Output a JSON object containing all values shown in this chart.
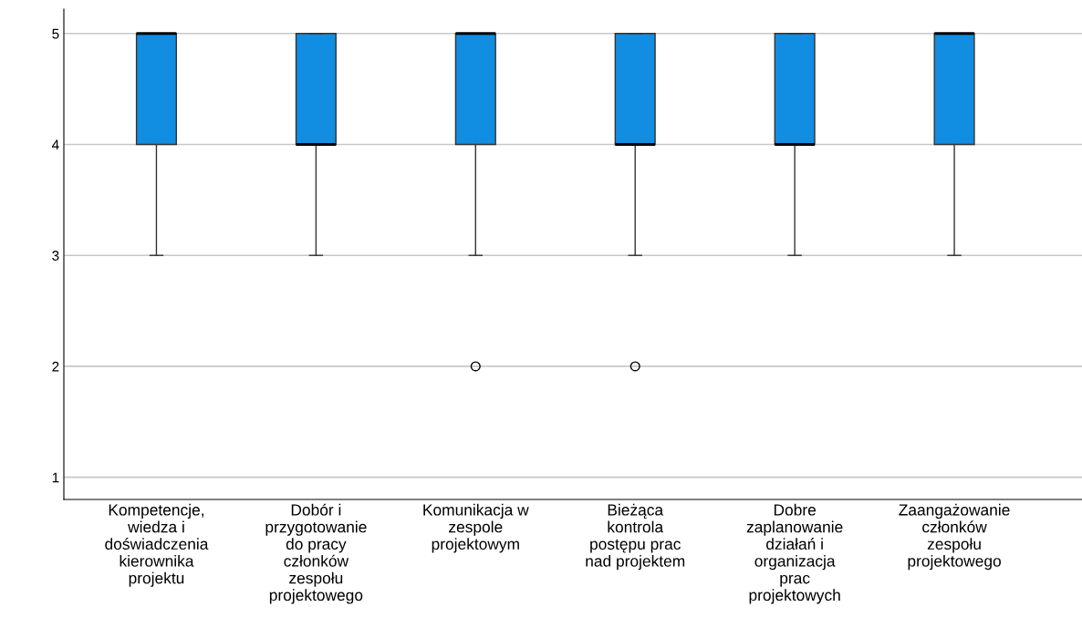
{
  "chart_data": {
    "type": "box",
    "categories": [
      "Kompetencje,\nwiedza i\ndoświadczenia\nkierownika\nprojektu",
      "Dobór i\nprzygotowanie\ndo pracy\nczłonków\nzespołu\nprojektowego",
      "Komunikacja w\nzespole\nprojektowym",
      "Bieżąca\nkontrola\npostępu prac\nnad projektem",
      "Dobre\nzaplanowanie\ndziałań i\norganizacja\nprac\nprojektowych",
      "Zaangażowanie\nczłonków\nzespołu\nprojektowego"
    ],
    "boxes": [
      {
        "low": 3,
        "q1": 4,
        "median": 5,
        "q3": 5,
        "high": 5
      },
      {
        "low": 3,
        "q1": 4,
        "median": 4,
        "q3": 5,
        "high": 5
      },
      {
        "low": 3,
        "q1": 4,
        "median": 5,
        "q3": 5,
        "high": 5,
        "outliers": [
          2
        ]
      },
      {
        "low": 3,
        "q1": 4,
        "median": 4,
        "q3": 5,
        "high": 5,
        "outliers": [
          2
        ]
      },
      {
        "low": 3,
        "q1": 4,
        "median": 4,
        "q3": 5,
        "high": 5
      },
      {
        "low": 3,
        "q1": 4,
        "median": 5,
        "q3": 5,
        "high": 5
      }
    ],
    "color": "#118de2",
    "ylim": [
      0.8,
      5.22
    ],
    "yticks": [
      1,
      2,
      3,
      4,
      5
    ],
    "grid": "y"
  }
}
